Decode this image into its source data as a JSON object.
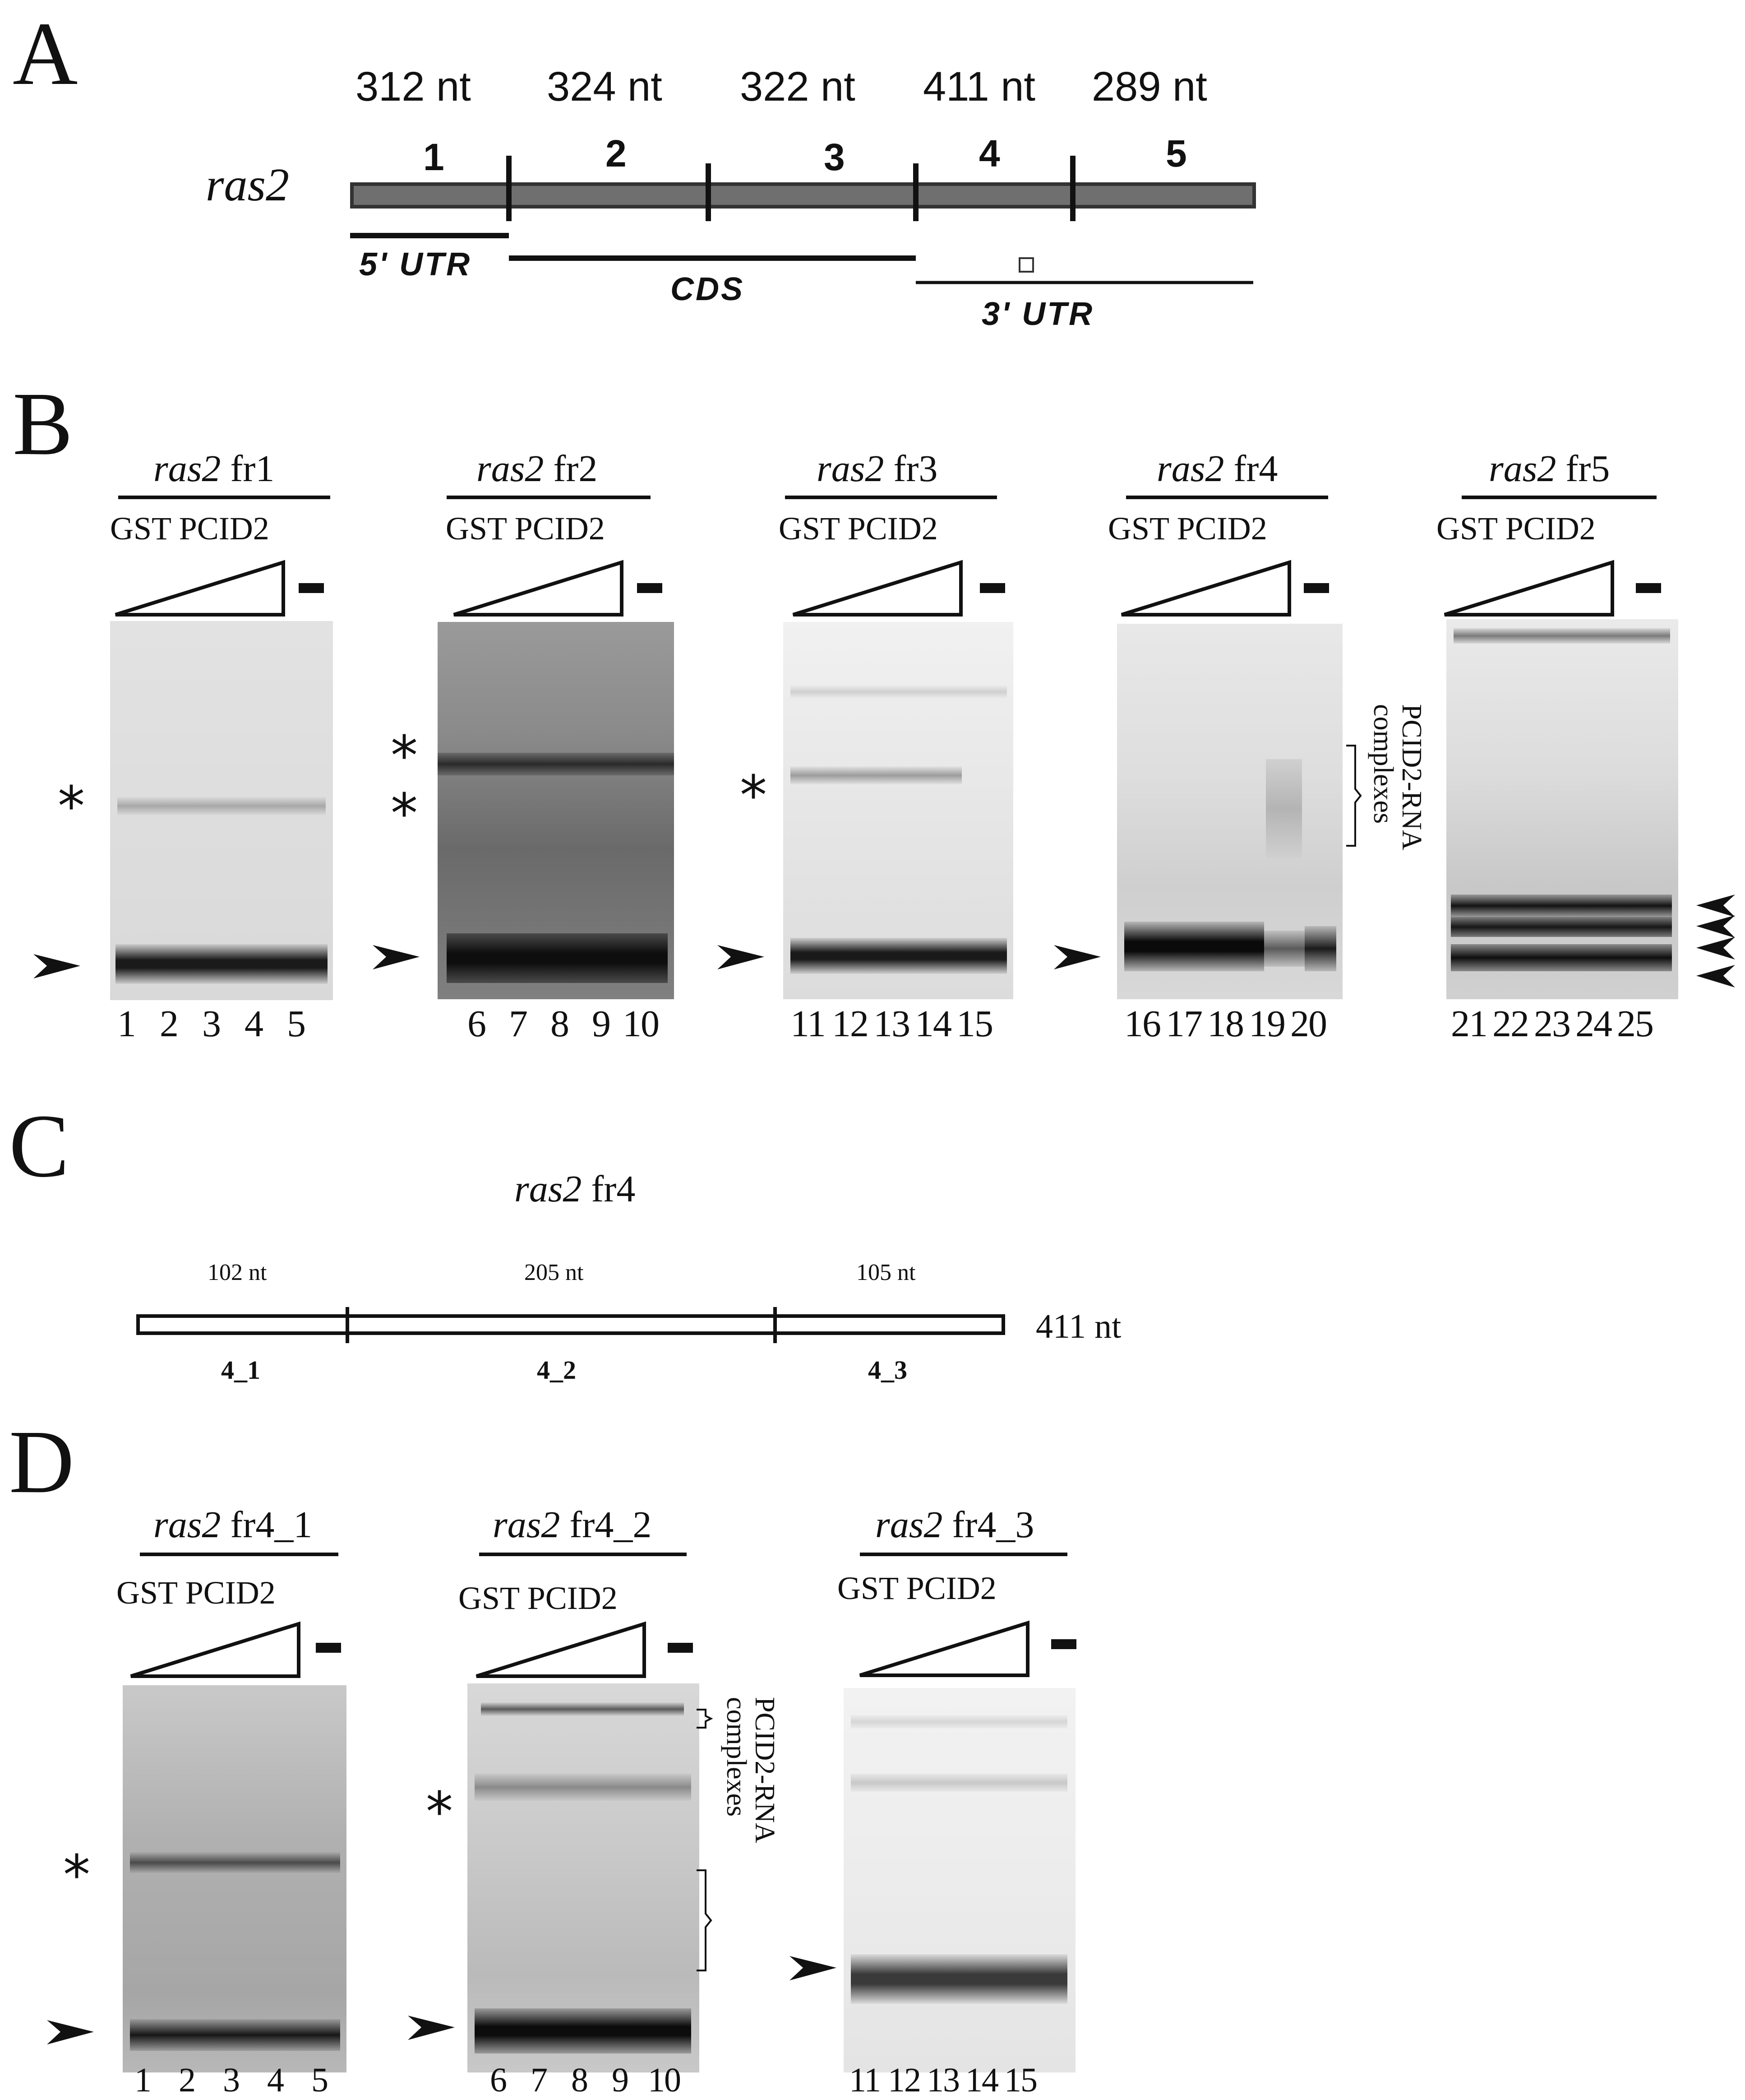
{
  "panels": {
    "A": {
      "label": "A",
      "gene": "ras2",
      "exons": [
        {
          "num": "1",
          "length": "312 nt"
        },
        {
          "num": "2",
          "length": "324 nt"
        },
        {
          "num": "3",
          "length": "322 nt"
        },
        {
          "num": "4",
          "length": "411 nt"
        },
        {
          "num": "5",
          "length": "289 nt"
        }
      ],
      "regions": [
        "5' UTR",
        "CDS",
        "3' UTR"
      ]
    },
    "B": {
      "label": "B",
      "gels": [
        {
          "title_gene": "ras2",
          "title_frag": "fr1",
          "protein": "GST PCID2",
          "lanes": [
            "1",
            "2",
            "3",
            "4",
            "5"
          ]
        },
        {
          "title_gene": "ras2",
          "title_frag": "fr2",
          "protein": "GST PCID2",
          "lanes": [
            "6",
            "7",
            "8",
            "9",
            "10"
          ]
        },
        {
          "title_gene": "ras2",
          "title_frag": "fr3",
          "protein": "GST PCID2",
          "lanes": [
            "11",
            "12",
            "13",
            "14",
            "15"
          ]
        },
        {
          "title_gene": "ras2",
          "title_frag": "fr4",
          "protein": "GST PCID2",
          "lanes": [
            "16",
            "17",
            "18",
            "19",
            "20"
          ]
        },
        {
          "title_gene": "ras2",
          "title_frag": "fr5",
          "protein": "GST PCID2",
          "lanes": [
            "21",
            "22",
            "23",
            "24",
            "25"
          ]
        }
      ],
      "complex_label": [
        "PCID2-RNA",
        "complexes"
      ],
      "star": "*"
    },
    "C": {
      "label": "C",
      "title_gene": "ras2",
      "title_frag": "fr4",
      "segments": [
        {
          "length": "102 nt",
          "name": "4_1"
        },
        {
          "length": "205 nt",
          "name": "4_2"
        },
        {
          "length": "105 nt",
          "name": "4_3"
        }
      ],
      "total": "411 nt"
    },
    "D": {
      "label": "D",
      "gels": [
        {
          "title_gene": "ras2",
          "title_frag": "fr4_1",
          "protein": "GST PCID2",
          "lanes": [
            "1",
            "2",
            "3",
            "4",
            "5"
          ]
        },
        {
          "title_gene": "ras2",
          "title_frag": "fr4_2",
          "protein": "GST PCID2",
          "lanes": [
            "6",
            "7",
            "8",
            "9",
            "10"
          ]
        },
        {
          "title_gene": "ras2",
          "title_frag": "fr4_3",
          "protein": "GST PCID2",
          "lanes": [
            "11",
            "12",
            "13",
            "14",
            "15"
          ]
        }
      ],
      "complex_label": [
        "PCID2-RNA",
        "complexes"
      ],
      "star": "*"
    }
  }
}
